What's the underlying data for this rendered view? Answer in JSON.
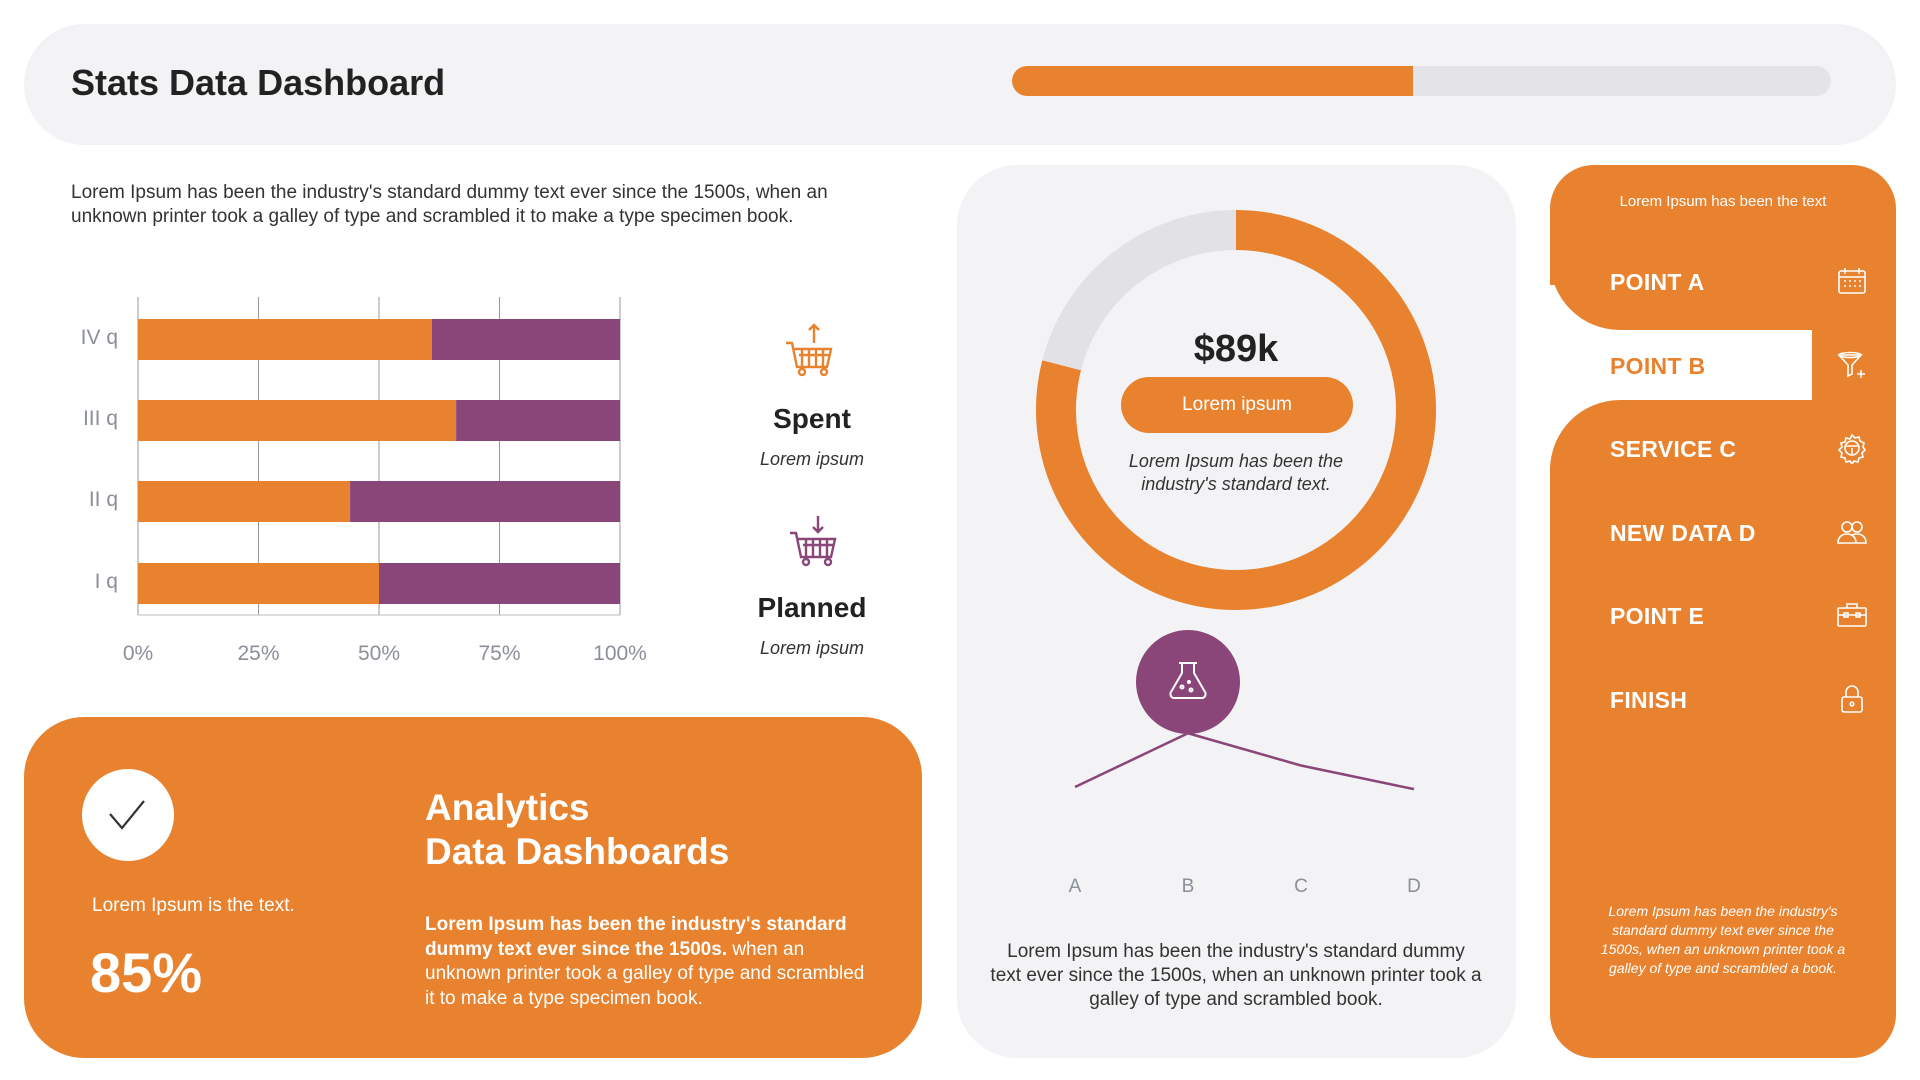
{
  "header": {
    "title": "Stats Data Dashboard",
    "progress_percent": 49
  },
  "intro": "Lorem Ipsum has been the industry's standard dummy text ever since the 1500s, when an unknown printer took a galley of type and scrambled it to make a type specimen book.",
  "colors": {
    "accent": "#E8822F",
    "purple": "#8A4579",
    "panel": "#F3F3F5",
    "track": "#E3E3E8"
  },
  "legend": {
    "spent": {
      "title": "Spent",
      "subtitle": "Lorem ipsum",
      "icon": "cart-arrow-up-icon"
    },
    "planned": {
      "title": "Planned",
      "subtitle": "Lorem ipsum",
      "icon": "cart-arrow-down-icon"
    }
  },
  "chart_data": [
    {
      "type": "bar",
      "orientation": "horizontal",
      "stacked": true,
      "categories": [
        "IV q",
        "III q",
        "II q",
        "I q"
      ],
      "series": [
        {
          "values": [
            61,
            66,
            44,
            50
          ],
          "color": "#E8822F"
        },
        {
          "values": [
            39,
            34,
            56,
            50
          ],
          "color": "#8A4579"
        }
      ],
      "x_ticks": [
        "0%",
        "25%",
        "50%",
        "75%",
        "100%"
      ],
      "xlim": [
        0,
        100
      ],
      "grid": true
    },
    {
      "type": "pie",
      "variant": "donut",
      "values": [
        79,
        21
      ],
      "colors": [
        "#E8822F",
        "#E2E2E6"
      ]
    },
    {
      "type": "line",
      "categories": [
        "A",
        "B",
        "C",
        "D"
      ],
      "values": [
        20,
        45,
        30,
        19
      ],
      "color": "#8A4579"
    }
  ],
  "card": {
    "icon": "checkmark-icon",
    "caption": "Lorem Ipsum is the text.",
    "percent": "85%",
    "heading_line1": "Analytics",
    "heading_line2": "Data Dashboards",
    "body_bold": "Lorem Ipsum has been the industry's standard dummy text ever since the 1500s.",
    "body_rest": " when an unknown printer took a galley of type and scrambled it to make a type specimen book."
  },
  "donut": {
    "value": "$89k",
    "button": "Lorem ipsum",
    "caption": "Lorem Ipsum has been the industry's standard text.",
    "icon": "flask-icon"
  },
  "mid_text": "Lorem Ipsum has been the industry's standard dummy text ever since the 1500s, when an unknown printer took a galley of type and scrambled book.",
  "menu": {
    "heading": "Lorem Ipsum has been the text",
    "items": [
      {
        "label": "POINT A",
        "icon": "calendar-icon"
      },
      {
        "label": "POINT B",
        "icon": "funnel-plus-icon",
        "active": true
      },
      {
        "label": "SERVICE C",
        "icon": "gear-icon"
      },
      {
        "label": "NEW DATA D",
        "icon": "users-icon"
      },
      {
        "label": "POINT E",
        "icon": "toolbox-icon"
      },
      {
        "label": "FINISH",
        "icon": "lock-icon"
      }
    ],
    "footer": "Lorem Ipsum has been the industry's standard dummy text ever since the 1500s, when an unknown printer took a galley of type and scrambled  a book."
  }
}
